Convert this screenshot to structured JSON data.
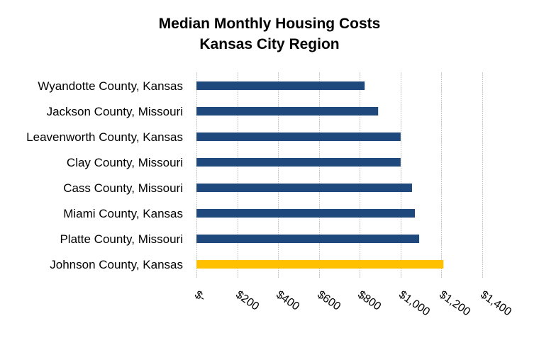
{
  "chart_data": {
    "type": "bar",
    "orientation": "horizontal",
    "title": "Median Monthly Housing Costs",
    "subtitle": "Kansas City Region",
    "xlabel": "",
    "ylabel": "",
    "categories": [
      "Wyandotte County, Kansas",
      "Jackson County, Missouri",
      "Leavenworth County, Kansas",
      "Clay County, Missouri",
      "Cass County, Missouri",
      "Miami County, Kansas",
      "Platte County, Missouri",
      "Johnson County, Kansas"
    ],
    "values": [
      824,
      890,
      1000,
      1000,
      1056,
      1070,
      1091,
      1210
    ],
    "colors": [
      "#1f497d",
      "#1f497d",
      "#1f497d",
      "#1f497d",
      "#1f497d",
      "#1f497d",
      "#1f497d",
      "#ffc000"
    ],
    "highlight": "Johnson County, Kansas",
    "xlim": [
      0,
      1400
    ],
    "xticks": [
      0,
      200,
      400,
      600,
      800,
      1000,
      1200,
      1400
    ],
    "xtick_labels": [
      "$-",
      "$200",
      "$400",
      "$600",
      "$800",
      "$1,000",
      "$1,200",
      "$1,400"
    ],
    "grid": true,
    "legend": "none"
  },
  "colors": {
    "bar": "#1f497d",
    "highlight_bar": "#ffc000",
    "gridline": "#c8c8c8"
  }
}
